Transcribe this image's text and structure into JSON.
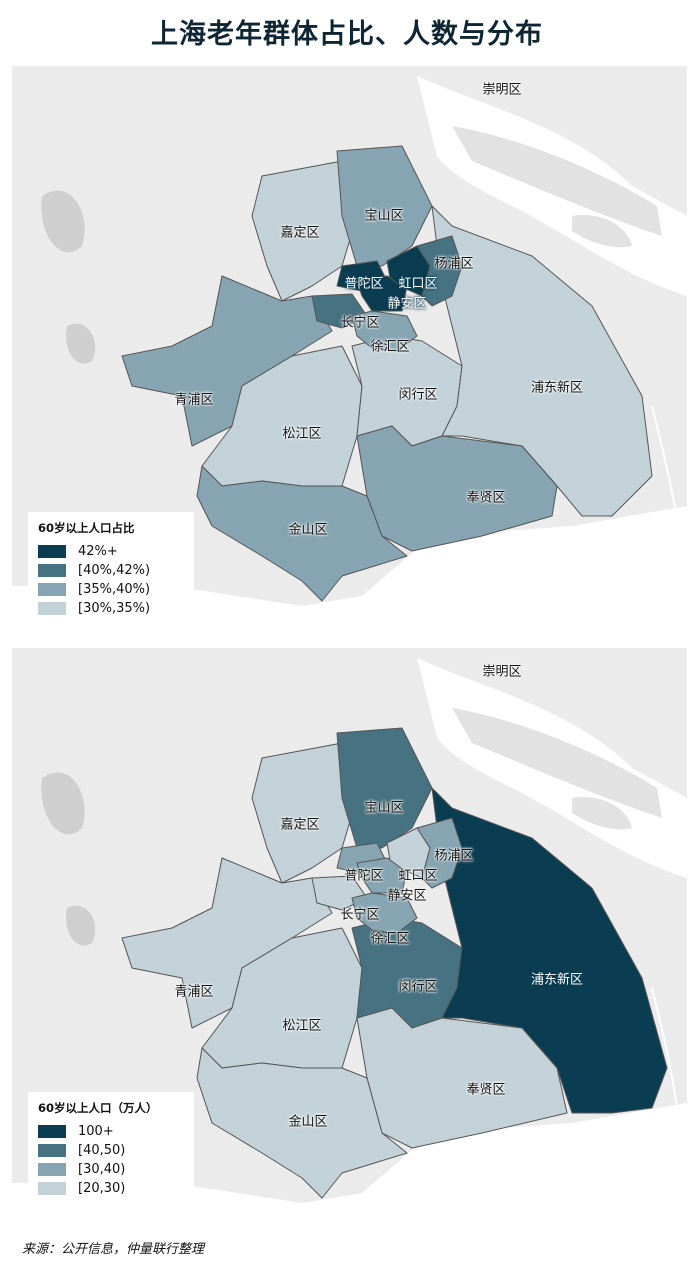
{
  "title": "上海老年群体占比、人数与分布",
  "colors": {
    "level4": "#0b3d52",
    "level3": "#467282",
    "level2": "#86a4b1",
    "level1": "#c3d2d9",
    "background": "#ebebeb",
    "water": "#ffffff"
  },
  "maps": [
    {
      "legend_title": "60岁以上人口占比",
      "legend": [
        {
          "label": "42%+",
          "color": "#0b3d52"
        },
        {
          "label": "[40%,42%)",
          "color": "#467282"
        },
        {
          "label": "[35%,40%)",
          "color": "#86a4b1"
        },
        {
          "label": "[30%,35%)",
          "color": "#c3d2d9"
        }
      ],
      "districts": {
        "崇明区": "none",
        "嘉定区": "[30%,35%)",
        "宝山区": "[35%,40%)",
        "杨浦区": "[40%,42%)",
        "普陀区": "42%+",
        "虹口区": "42%+",
        "静安区": "42%+",
        "长宁区": "[40%,42%)",
        "徐汇区": "[35%,40%)",
        "浦东新区": "[30%,35%)",
        "青浦区": "[35%,40%)",
        "闵行区": "[30%,35%)",
        "松江区": "[30%,35%)",
        "奉贤区": "[35%,40%)",
        "金山区": "[35%,40%)"
      }
    },
    {
      "legend_title": "60岁以上人口（万人）",
      "legend": [
        {
          "label": "100+",
          "color": "#0b3d52"
        },
        {
          "label": "[40,50)",
          "color": "#467282"
        },
        {
          "label": "[30,40)",
          "color": "#86a4b1"
        },
        {
          "label": "[20,30)",
          "color": "#c3d2d9"
        }
      ],
      "districts": {
        "崇明区": "none",
        "嘉定区": "[20,30)",
        "宝山区": "[40,50)",
        "杨浦区": "[30,40)",
        "普陀区": "[30,40)",
        "虹口区": "[20,30)",
        "静安区": "[30,40)",
        "长宁区": "[20,30)",
        "徐汇区": "[30,40)",
        "浦东新区": "100+",
        "青浦区": "[20,30)",
        "闵行区": "[40,50)",
        "松江区": "[20,30)",
        "奉贤区": "[20,30)",
        "金山区": "[20,30)"
      }
    }
  ],
  "district_names": [
    "崇明区",
    "嘉定区",
    "宝山区",
    "杨浦区",
    "普陀区",
    "虹口区",
    "静安区",
    "长宁区",
    "徐汇区",
    "浦东新区",
    "青浦区",
    "闵行区",
    "松江区",
    "奉贤区",
    "金山区"
  ],
  "source": "来源：公开信息，仲量联行整理"
}
